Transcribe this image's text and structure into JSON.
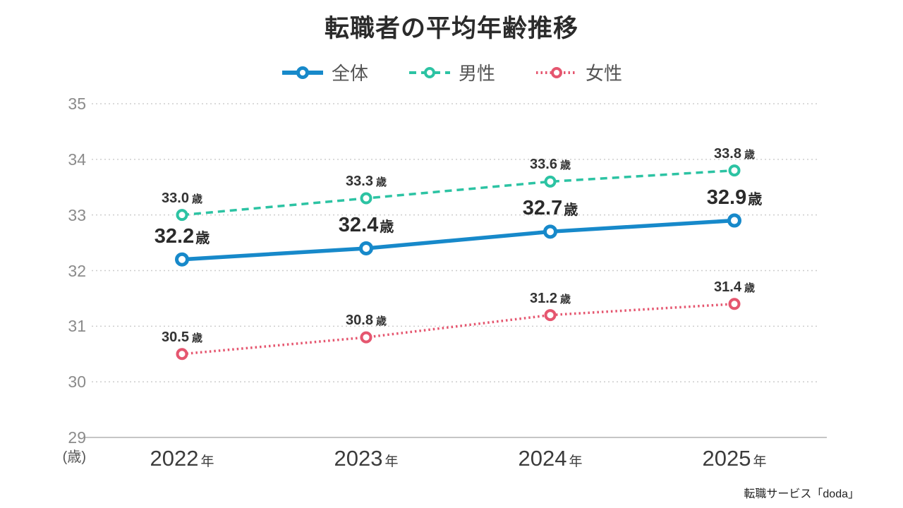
{
  "source": "転職サービス「doda」",
  "chart_data": {
    "type": "line",
    "title": "転職者の平均年齢推移",
    "x": [
      "2022",
      "2023",
      "2024",
      "2025"
    ],
    "x_suffix": "年",
    "y_axis": {
      "min": 29,
      "max": 35,
      "ticks": [
        35,
        34,
        33,
        32,
        31,
        30,
        29
      ],
      "unit": "(歳)"
    },
    "grid": true,
    "legend_position": "top",
    "series": [
      {
        "key": "overall",
        "name": "全体",
        "values": [
          32.2,
          32.4,
          32.7,
          32.9
        ],
        "color": "#1789ca",
        "line_style": "solid",
        "emphasis": true,
        "label_suffix": "歳"
      },
      {
        "key": "male",
        "name": "男性",
        "values": [
          33.0,
          33.3,
          33.6,
          33.8
        ],
        "color": "#2cc3a3",
        "line_style": "dashed",
        "emphasis": false,
        "label_suffix": "歳"
      },
      {
        "key": "female",
        "name": "女性",
        "values": [
          30.5,
          30.8,
          31.2,
          31.4
        ],
        "color": "#e5566f",
        "line_style": "dotted",
        "emphasis": false,
        "label_suffix": "歳"
      }
    ]
  }
}
